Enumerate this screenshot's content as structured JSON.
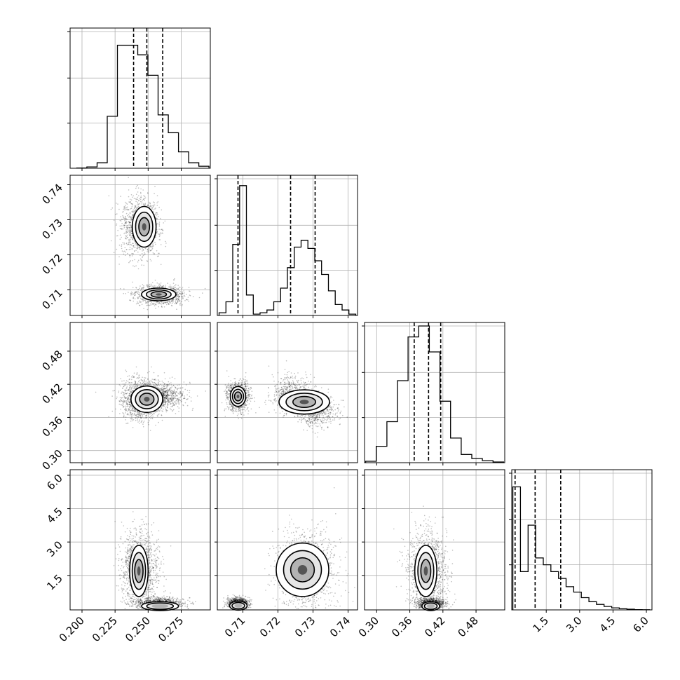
{
  "chart_data": {
    "type": "corner",
    "parameters": [
      {
        "id": "p0",
        "range": [
          0.191,
          0.297
        ],
        "ticks": [
          0.2,
          0.225,
          0.25,
          0.275
        ],
        "tick_labels": [
          "0.200",
          "0.225",
          "0.250",
          "0.275"
        ],
        "quantiles": [
          0.239,
          0.249,
          0.261
        ]
      },
      {
        "id": "p1",
        "range": [
          0.7027,
          0.7427
        ],
        "ticks": [
          0.71,
          0.72,
          0.73,
          0.74
        ],
        "tick_labels": [
          "0.71",
          "0.72",
          "0.73",
          "0.74"
        ],
        "quantiles": [
          0.7086,
          0.7236,
          0.7306
        ]
      },
      {
        "id": "p2",
        "range": [
          0.278,
          0.532
        ],
        "ticks": [
          0.3,
          0.36,
          0.42,
          0.48
        ],
        "tick_labels": [
          "0.30",
          "0.36",
          "0.42",
          "0.48"
        ],
        "quantiles": [
          0.368,
          0.394,
          0.416
        ]
      },
      {
        "id": "p3",
        "range": [
          -0.05,
          6.25
        ],
        "ticks": [
          1.5,
          3.0,
          4.5,
          6.0
        ],
        "tick_labels": [
          "1.5",
          "3.0",
          "4.5",
          "6.0"
        ],
        "quantiles": [
          0.1,
          1.0,
          2.15
        ]
      }
    ],
    "histograms": [
      [
        0.002,
        0.01,
        0.04,
        0.38,
        0.9,
        0.9,
        0.83,
        0.68,
        0.39,
        0.26,
        0.12,
        0.04,
        0.015
      ],
      [
        0.02,
        0.1,
        0.52,
        0.95,
        0.15,
        0.01,
        0.02,
        0.04,
        0.1,
        0.2,
        0.35,
        0.5,
        0.55,
        0.49,
        0.4,
        0.3,
        0.18,
        0.08,
        0.04,
        0.01
      ],
      [
        0.01,
        0.12,
        0.3,
        0.6,
        0.92,
        1.0,
        0.81,
        0.45,
        0.18,
        0.06,
        0.03,
        0.015,
        0.005
      ],
      [
        0.9,
        0.28,
        0.62,
        0.38,
        0.33,
        0.28,
        0.23,
        0.17,
        0.13,
        0.09,
        0.06,
        0.04,
        0.025,
        0.015,
        0.008,
        0.005,
        0.002,
        0.001
      ]
    ],
    "grid": true
  }
}
